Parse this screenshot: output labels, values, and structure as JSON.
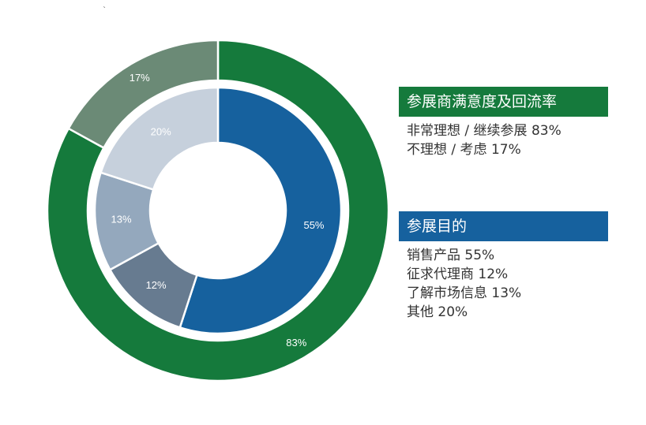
{
  "colors": {
    "green": "#157a3c",
    "green_light": "#6b8a76",
    "blue": "#16619e",
    "slate": "#677b90",
    "gray_blue": "#94a8bd",
    "pale_blue": "#c6d0dc",
    "text": "#333333"
  },
  "chart_data": [
    {
      "type": "pie",
      "subtype": "donut-outer",
      "title": "参展商满意度及回流率",
      "categories": [
        "非常理想 / 继续参展",
        "不理想 / 考虑"
      ],
      "values": [
        83,
        17
      ],
      "labels": [
        "83%",
        "17%"
      ],
      "colors": [
        "#157a3c",
        "#6b8a76"
      ]
    },
    {
      "type": "pie",
      "subtype": "donut-inner",
      "title": "参展目的",
      "categories": [
        "销售产品",
        "征求代理商",
        "了解市场信息",
        "其他"
      ],
      "values": [
        55,
        12,
        13,
        20
      ],
      "labels": [
        "55%",
        "12%",
        "13%",
        "20%"
      ],
      "colors": [
        "#16619e",
        "#677b90",
        "#94a8bd",
        "#c6d0dc"
      ]
    }
  ],
  "panel1": {
    "title": "参展商满意度及回流率",
    "items": [
      "非常理想 / 继续参展  83%",
      "不理想 / 考虑 17%"
    ]
  },
  "panel2": {
    "title": "参展目的",
    "items": [
      "销售产品  55%",
      "征求代理商 12%",
      "了解市场信息 13%",
      "其他 20%"
    ]
  },
  "stray_mark": "`"
}
